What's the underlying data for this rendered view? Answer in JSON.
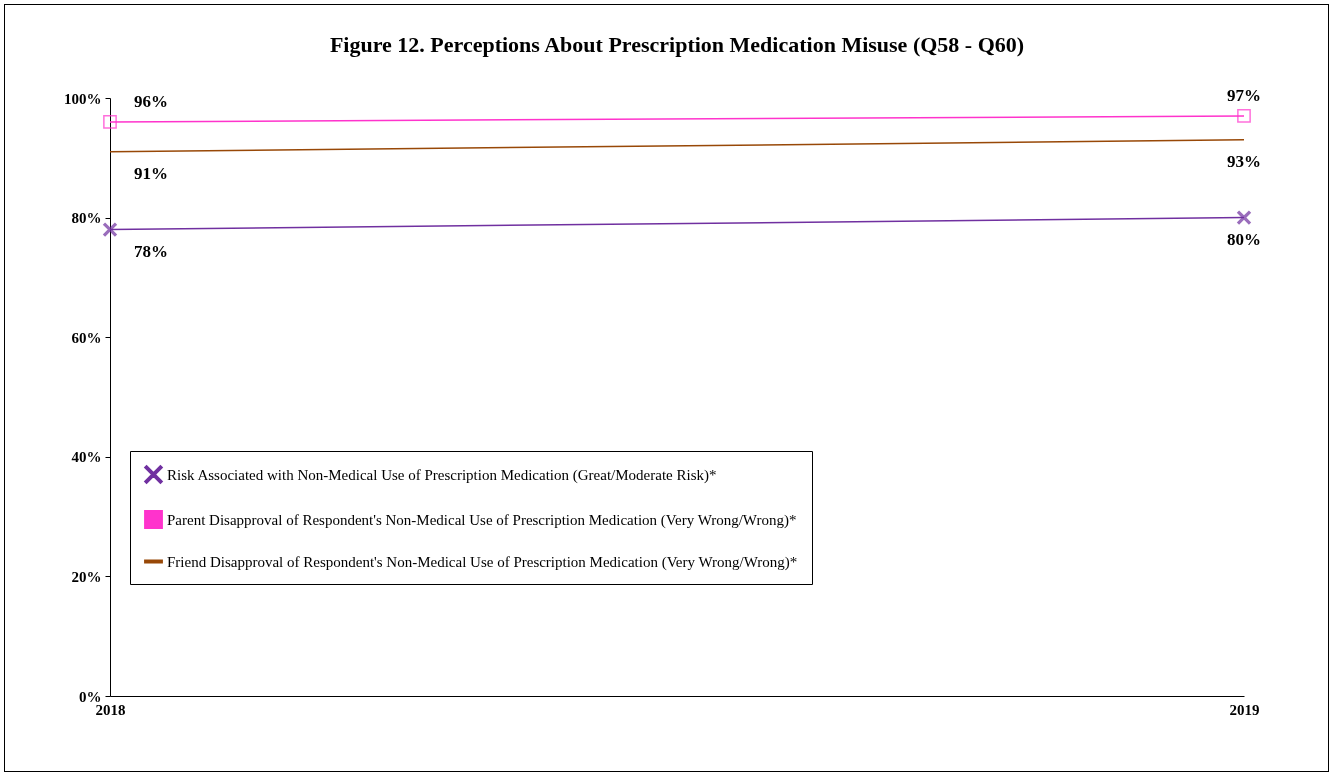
{
  "chart_data": {
    "type": "line",
    "title": "Figure 12. Perceptions About Prescription Medication Misuse (Q58 - Q60)",
    "categories": [
      "2018",
      "2019"
    ],
    "series": [
      {
        "name": "Risk Associated with Non-Medical Use of Prescription Medication (Great/Moderate Risk)*",
        "color": "#7030a0",
        "marker": "cross",
        "values": [
          78,
          80
        ]
      },
      {
        "name": "Parent Disapproval of Respondent's Non-Medical Use of Prescription Medication (Very Wrong/Wrong)*",
        "color": "#ff33cc",
        "marker": "square",
        "values": [
          96,
          97
        ]
      },
      {
        "name": "Friend Disapproval of Respondent's Non-Medical Use of Prescription Medication (Very Wrong/Wrong)*",
        "color": "#984807",
        "marker": "none",
        "values": [
          91,
          93
        ]
      }
    ],
    "ylim": [
      0,
      100
    ],
    "yticks": [
      {
        "value": 0,
        "label": "0%"
      },
      {
        "value": 20,
        "label": "20%"
      },
      {
        "value": 40,
        "label": "40%"
      },
      {
        "value": 60,
        "label": "60%"
      },
      {
        "value": 80,
        "label": "80%"
      },
      {
        "value": 100,
        "label": "100%"
      }
    ],
    "value_labels": [
      [
        "78%",
        "80%"
      ],
      [
        "96%",
        "97%"
      ],
      [
        "91%",
        "93%"
      ]
    ],
    "grid": false,
    "legend": "bottom",
    "line_style": "solid"
  }
}
